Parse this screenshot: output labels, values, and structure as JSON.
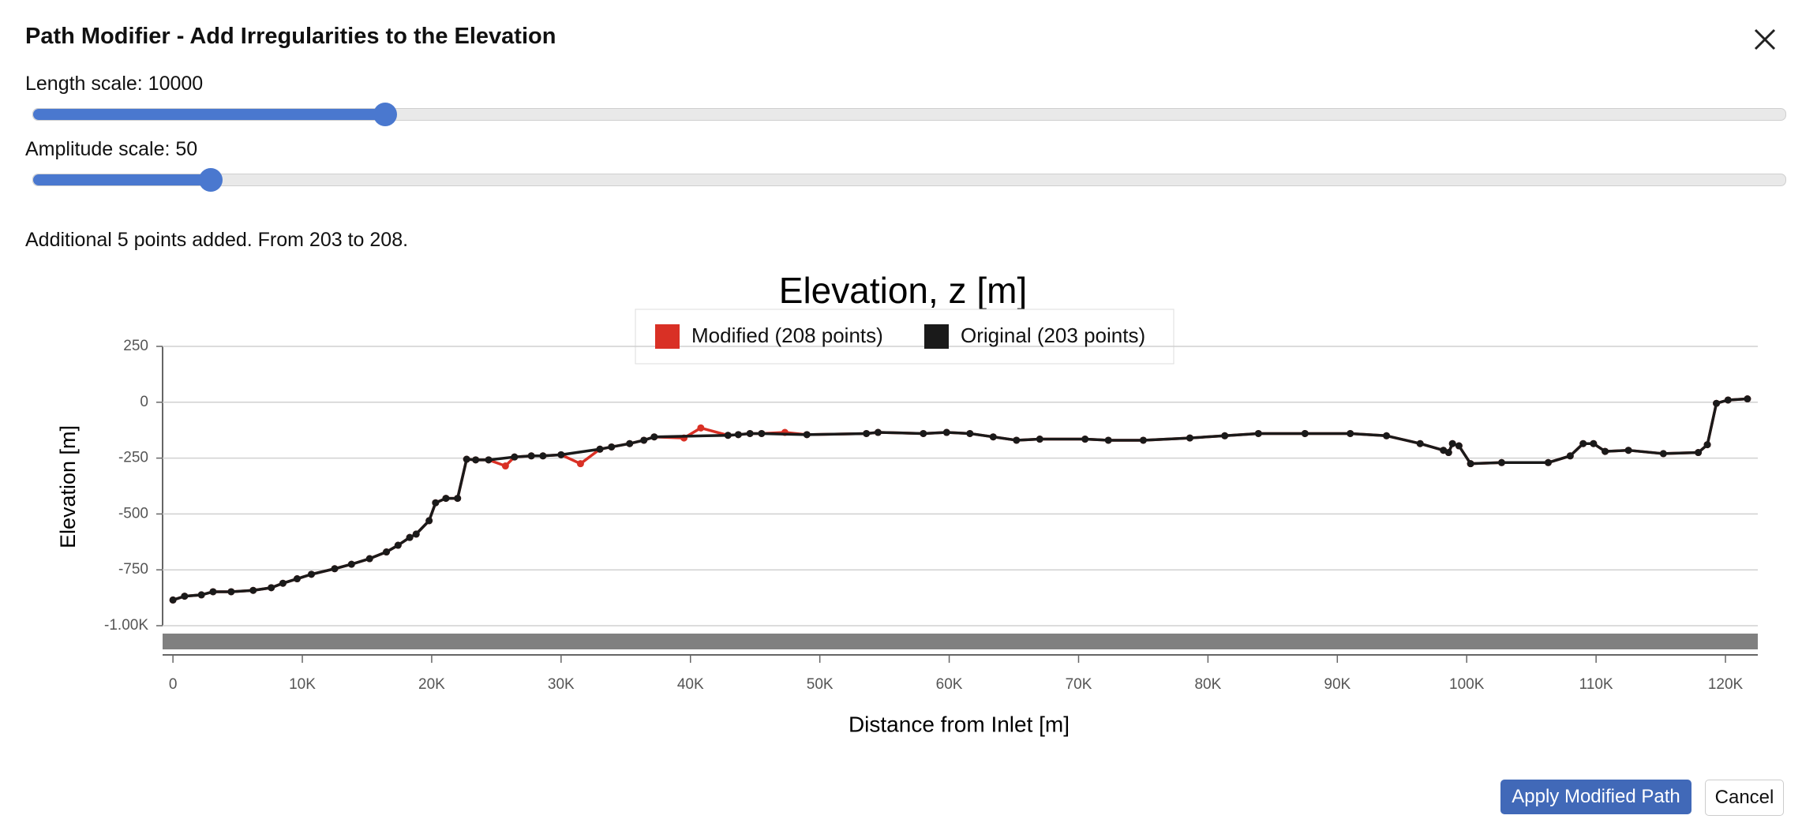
{
  "dialog": {
    "title": "Path Modifier - Add Irregularities to the Elevation",
    "length_label": "Length scale: 10000",
    "amplitude_label": "Amplitude scale: 50",
    "status": "Additional 5 points added. From 203 to 208.",
    "apply_button": "Apply Modified Path",
    "cancel_button": "Cancel"
  },
  "chart_data": {
    "type": "line",
    "title": "Elevation, z [m]",
    "x_label": "Distance from Inlet [m]",
    "y_label": "Elevation [m]",
    "xlim": [
      -800,
      122500
    ],
    "ylim": [
      -1000,
      250
    ],
    "xticks": [
      0,
      {
        "value": 10000,
        "label": "10K"
      },
      {
        "value": 20000,
        "label": "20K"
      },
      {
        "value": 30000,
        "label": "30K"
      },
      {
        "value": 40000,
        "label": "40K"
      },
      {
        "value": 50000,
        "label": "50K"
      },
      {
        "value": 60000,
        "label": "60K"
      },
      {
        "value": 70000,
        "label": "70K"
      },
      {
        "value": 80000,
        "label": "80K"
      },
      {
        "value": 90000,
        "label": "90K"
      },
      {
        "value": 100000,
        "label": "100K"
      },
      {
        "value": 110000,
        "label": "110K"
      },
      {
        "value": 120000,
        "label": "120K"
      }
    ],
    "yticks": [
      {
        "value": -1000,
        "label": "-1.00K"
      },
      -750,
      -500,
      -250,
      0,
      250
    ],
    "grid": true,
    "series": [
      {
        "name": "Modified (208 points)",
        "color": "#d93025",
        "x": [
          0,
          900,
          2200,
          3100,
          4500,
          6200,
          7600,
          8500,
          9600,
          10700,
          12500,
          13800,
          15200,
          16500,
          17400,
          18300,
          18800,
          19800,
          20300,
          21100,
          22000,
          22700,
          23400,
          24400,
          25700,
          26400,
          27700,
          28600,
          30000,
          31500,
          33000,
          33900,
          35300,
          36400,
          37200,
          39500,
          40800,
          42900,
          43700,
          44600,
          45500,
          47300,
          49000,
          53600,
          54500,
          58000,
          59800,
          61600,
          63400,
          65200,
          67000,
          70500,
          72300,
          75000,
          78600,
          81300,
          83900,
          87500,
          91000,
          93800,
          96400,
          98200,
          98600,
          98900,
          99400,
          100300,
          102700,
          106300,
          108000,
          109000,
          109800,
          110700,
          112500,
          115200,
          117900,
          118600,
          119300,
          120200,
          121700
        ],
        "values": [
          -885,
          -868,
          -862,
          -848,
          -848,
          -842,
          -830,
          -810,
          -790,
          -770,
          -745,
          -725,
          -700,
          -670,
          -640,
          -605,
          -590,
          -530,
          -450,
          -430,
          -430,
          -255,
          -258,
          -258,
          -285,
          -245,
          -240,
          -240,
          -235,
          -275,
          -210,
          -200,
          -185,
          -170,
          -155,
          -160,
          -115,
          -148,
          -145,
          -140,
          -140,
          -135,
          -145,
          -140,
          -135,
          -140,
          -135,
          -140,
          -155,
          -170,
          -165,
          -165,
          -170,
          -170,
          -160,
          -150,
          -140,
          -140,
          -140,
          -150,
          -185,
          -215,
          -225,
          -185,
          -195,
          -275,
          -270,
          -270,
          -240,
          -185,
          -185,
          -220,
          -215,
          -230,
          -225,
          -190,
          -5,
          10,
          15
        ]
      },
      {
        "name": "Original (203 points)",
        "color": "#1a1a1a",
        "x": [
          0,
          900,
          2200,
          3100,
          4500,
          6200,
          7600,
          8500,
          9600,
          10700,
          12500,
          13800,
          15200,
          16500,
          17400,
          18300,
          18800,
          19800,
          20300,
          21100,
          22000,
          22700,
          23400,
          24400,
          26400,
          27700,
          28600,
          30000,
          33000,
          33900,
          35300,
          36400,
          37200,
          42900,
          43700,
          44600,
          45500,
          49000,
          53600,
          54500,
          58000,
          59800,
          61600,
          63400,
          65200,
          67000,
          70500,
          72300,
          75000,
          78600,
          81300,
          83900,
          87500,
          91000,
          93800,
          96400,
          98200,
          98600,
          98900,
          99400,
          100300,
          102700,
          106300,
          108000,
          109000,
          109800,
          110700,
          112500,
          115200,
          117900,
          118600,
          119300,
          120200,
          121700
        ],
        "values": [
          -885,
          -868,
          -862,
          -848,
          -848,
          -842,
          -830,
          -810,
          -790,
          -770,
          -745,
          -725,
          -700,
          -670,
          -640,
          -605,
          -590,
          -530,
          -450,
          -430,
          -430,
          -255,
          -258,
          -258,
          -245,
          -240,
          -240,
          -235,
          -210,
          -200,
          -185,
          -170,
          -155,
          -148,
          -145,
          -140,
          -140,
          -145,
          -140,
          -135,
          -140,
          -135,
          -140,
          -155,
          -170,
          -165,
          -165,
          -170,
          -170,
          -160,
          -150,
          -140,
          -140,
          -140,
          -150,
          -185,
          -215,
          -225,
          -185,
          -195,
          -275,
          -270,
          -270,
          -240,
          -185,
          -185,
          -220,
          -215,
          -230,
          -225,
          -190,
          -5,
          10,
          15
        ]
      }
    ]
  }
}
